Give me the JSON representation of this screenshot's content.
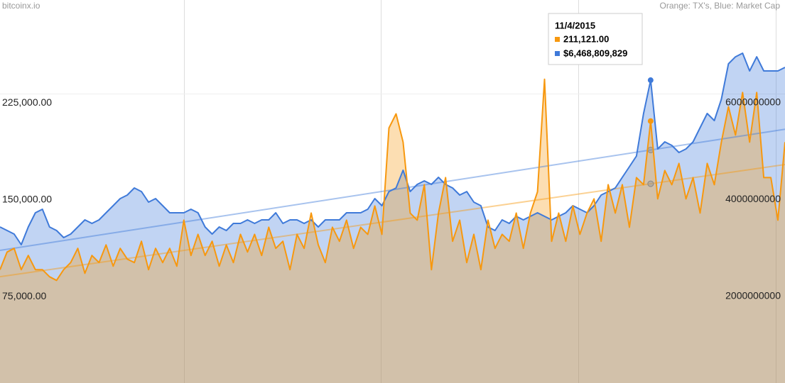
{
  "chart_data": {
    "type": "area",
    "source": "bitcoinx.io",
    "legend_text": "Orange: TX's, Blue: Market Cap",
    "ylim": [
      8000,
      305000
    ],
    "yticks": [
      {
        "value": 75000,
        "label": "75,000.00"
      },
      {
        "value": 150000,
        "label": "150,000.00"
      },
      {
        "value": 225000,
        "label": "225,000.00"
      }
    ],
    "y2lim": [
      212500000,
      8125000000
    ],
    "y2ticks": [
      2000000000,
      4000000000,
      6000000000
    ],
    "trendlines": true,
    "series": [
      {
        "name": "TX's",
        "color": "#f7980f",
        "values": [
          95900,
          109600,
          112400,
          95900,
          106900,
          95900,
          95900,
          90400,
          87600,
          95900,
          101400,
          112400,
          93100,
          106900,
          101400,
          115100,
          98600,
          112400,
          104100,
          101400,
          117900,
          95900,
          112400,
          101400,
          112400,
          98600,
          134300,
          106900,
          123300,
          106900,
          117900,
          98600,
          115100,
          101400,
          123300,
          109600,
          123300,
          106900,
          128800,
          112400,
          117900,
          95900,
          123300,
          112400,
          139800,
          115100,
          101400,
          128800,
          117900,
          134300,
          112400,
          128800,
          123300,
          145300,
          123300,
          205700,
          216700,
          194800,
          139800,
          134300,
          161800,
          95900,
          139800,
          167300,
          117900,
          134300,
          101400,
          123300,
          95900,
          134300,
          112400,
          123300,
          117900,
          139800,
          112400,
          139800,
          156300,
          243500,
          117900,
          139800,
          117900,
          145300,
          123300,
          139800,
          150800,
          117900,
          161800,
          139800,
          161800,
          128800,
          167300,
          161800,
          211121,
          150800,
          172800,
          161800,
          178300,
          150800,
          167300,
          139800,
          178300,
          161800,
          194800,
          222200,
          200300,
          233300,
          194800,
          233300,
          167300,
          167300,
          134300,
          194800
        ]
      },
      {
        "name": "Market Cap",
        "color": "#3f7ad9",
        "axis": "y2",
        "values": [
          3436000000,
          3363000000,
          3289000000,
          3070000000,
          3436000000,
          3729000000,
          3802000000,
          3436000000,
          3363000000,
          3216000000,
          3289000000,
          3436000000,
          3582000000,
          3509000000,
          3582000000,
          3729000000,
          3875000000,
          4022000000,
          4095000000,
          4242000000,
          4168000000,
          3949000000,
          4022000000,
          3875000000,
          3729000000,
          3729000000,
          3729000000,
          3802000000,
          3729000000,
          3436000000,
          3289000000,
          3436000000,
          3363000000,
          3509000000,
          3509000000,
          3582000000,
          3509000000,
          3582000000,
          3582000000,
          3729000000,
          3509000000,
          3582000000,
          3582000000,
          3509000000,
          3582000000,
          3436000000,
          3582000000,
          3582000000,
          3582000000,
          3729000000,
          3729000000,
          3729000000,
          3802000000,
          4022000000,
          3875000000,
          4168000000,
          4242000000,
          4608000000,
          4168000000,
          4315000000,
          4388000000,
          4315000000,
          4462000000,
          4315000000,
          4242000000,
          4095000000,
          4168000000,
          3949000000,
          3875000000,
          3436000000,
          3363000000,
          3582000000,
          3509000000,
          3656000000,
          3582000000,
          3656000000,
          3729000000,
          3656000000,
          3582000000,
          3656000000,
          3729000000,
          3875000000,
          3802000000,
          3729000000,
          3875000000,
          4095000000,
          4168000000,
          4242000000,
          4462000000,
          4681000000,
          4901000000,
          5780000000,
          6468809829,
          5048000000,
          5194000000,
          5121000000,
          4975000000,
          5048000000,
          5194000000,
          5487000000,
          5780000000,
          5634000000,
          6073000000,
          6806000000,
          6952000000,
          7026000000,
          6659000000,
          6952000000,
          6659000000,
          6659000000,
          6659000000,
          6733000000
        ]
      }
    ],
    "tooltip": {
      "index": 92,
      "title": "11/4/2015",
      "value_labels": [
        "211,121.00",
        "$6,468,809,829"
      ]
    }
  }
}
